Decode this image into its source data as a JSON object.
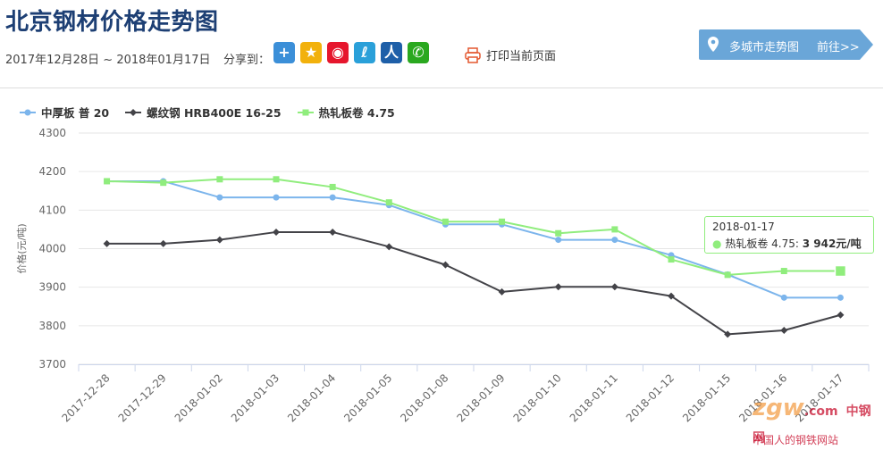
{
  "header": {
    "title": "北京钢材价格走势图",
    "date_range": "2017年12月28日 ~ 2018年01月17日",
    "share_label": "分享到：",
    "print_label": "打印当前页面",
    "city_button": {
      "label": "多城市走势图",
      "action": "前往>>"
    }
  },
  "share_icons": [
    {
      "name": "plus-share-icon",
      "glyph": "+",
      "color": "#3b8fd8"
    },
    {
      "name": "qzone-share-icon",
      "glyph": "★",
      "color": "#f2b10c"
    },
    {
      "name": "weibo-share-icon",
      "glyph": "◉",
      "color": "#e6162d"
    },
    {
      "name": "tencent-weibo-share-icon",
      "glyph": "ℓ",
      "color": "#2aa0d9"
    },
    {
      "name": "renren-share-icon",
      "glyph": "人",
      "color": "#1e5fa8"
    },
    {
      "name": "wechat-share-icon",
      "glyph": "✆",
      "color": "#2aa81f"
    }
  ],
  "tooltip": {
    "date": "2018-01-17",
    "series": "热轧板卷 4.75",
    "value": "3 942元/吨"
  },
  "watermark": {
    "brand": "zgw",
    "brand_suffix": ".com",
    "cn": "中钢网",
    "sub": "中国人的钢铁网站"
  },
  "chart_data": {
    "type": "line",
    "ylabel": "价格(元/吨)",
    "ylim": [
      3700,
      4300
    ],
    "yticks": [
      3700,
      3800,
      3900,
      4000,
      4100,
      4200,
      4300
    ],
    "grid": true,
    "legend_position": "top-left",
    "categories": [
      "2017-12-28",
      "2017-12-29",
      "2018-01-02",
      "2018-01-03",
      "2018-01-04",
      "2018-01-05",
      "2018-01-08",
      "2018-01-09",
      "2018-01-10",
      "2018-01-11",
      "2018-01-12",
      "2018-01-15",
      "2018-01-16",
      "2018-01-17"
    ],
    "series": [
      {
        "name": "中厚板 普 20",
        "color": "#7cb5ec",
        "marker": "circle",
        "values": [
          4175,
          4175,
          4133,
          4133,
          4133,
          4113,
          4063,
          4063,
          4023,
          4023,
          3983,
          3933,
          3873,
          3873
        ]
      },
      {
        "name": "螺纹钢 HRB400E 16-25",
        "color": "#434348",
        "marker": "diamond",
        "values": [
          4013,
          4013,
          4023,
          4043,
          4043,
          4005,
          3958,
          3888,
          3901,
          3901,
          3877,
          3778,
          3788,
          3828
        ]
      },
      {
        "name": "热轧板卷 4.75",
        "color": "#90ed7d",
        "marker": "square",
        "values": [
          4175,
          4171,
          4180,
          4180,
          4160,
          4120,
          4070,
          4070,
          4040,
          4050,
          3972,
          3932,
          3942,
          3942
        ]
      }
    ]
  }
}
